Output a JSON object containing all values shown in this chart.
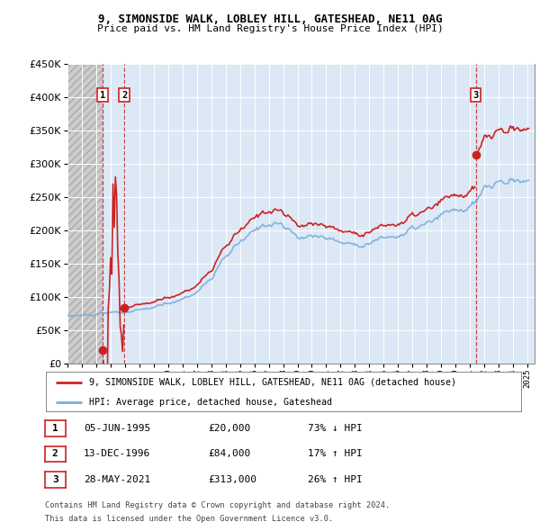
{
  "title1": "9, SIMONSIDE WALK, LOBLEY HILL, GATESHEAD, NE11 0AG",
  "title2": "Price paid vs. HM Land Registry's House Price Index (HPI)",
  "background_color": "#ffffff",
  "plot_bg_color": "#dce8f5",
  "hatch_bg_color": "#d8d8d8",
  "grid_color": "#ffffff",
  "purchases": [
    {
      "date": 1995.43,
      "price": 20000,
      "label": "1"
    },
    {
      "date": 1996.95,
      "price": 84000,
      "label": "2"
    },
    {
      "date": 2021.41,
      "price": 313000,
      "label": "3"
    }
  ],
  "legend_entries": [
    "9, SIMONSIDE WALK, LOBLEY HILL, GATESHEAD, NE11 0AG (detached house)",
    "HPI: Average price, detached house, Gateshead"
  ],
  "table_rows": [
    {
      "num": "1",
      "date": "05-JUN-1995",
      "price": "£20,000",
      "change": "73% ↓ HPI"
    },
    {
      "num": "2",
      "date": "13-DEC-1996",
      "price": "£84,000",
      "change": "17% ↑ HPI"
    },
    {
      "num": "3",
      "date": "28-MAY-2021",
      "price": "£313,000",
      "change": "26% ↑ HPI"
    }
  ],
  "footnote1": "Contains HM Land Registry data © Crown copyright and database right 2024.",
  "footnote2": "This data is licensed under the Open Government Licence v3.0.",
  "ylim": [
    0,
    450000
  ],
  "xlim_start": 1993.0,
  "xlim_end": 2025.5,
  "hatch_end": 1995.43,
  "shade2_start": 1996.95,
  "shade3_start": 2021.41,
  "shade3_end": 2025.5
}
